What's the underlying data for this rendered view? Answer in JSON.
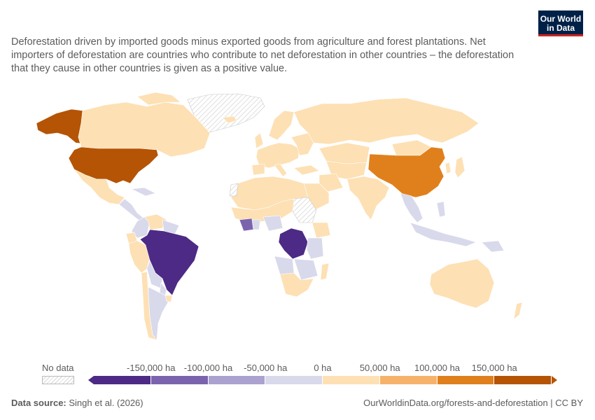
{
  "header": {
    "subtitle": "Deforestation driven by imported goods minus exported goods from agriculture and forest plantations. Net importers of deforestation are countries who contribute to net deforestation in other countries – the deforestation that they cause in other countries is given as a positive value.",
    "logo_line1": "Our World",
    "logo_line2": "in Data"
  },
  "legend": {
    "no_data_label": "No data",
    "tick_labels": [
      "-150,000 ha",
      "-100,000 ha",
      "-50,000 ha",
      "0 ha",
      "50,000 ha",
      "100,000 ha",
      "150,000 ha"
    ],
    "colors": [
      "#4c2a85",
      "#7b64ad",
      "#aba2cf",
      "#d9d9ec",
      "#fde0b4",
      "#f6b26b",
      "#e0801c",
      "#b55404"
    ]
  },
  "footer": {
    "source_label": "Data source:",
    "source_value": "Singh et al. (2026)",
    "url": "OurWorldinData.org/forests-and-deforestation | CC BY"
  }
}
